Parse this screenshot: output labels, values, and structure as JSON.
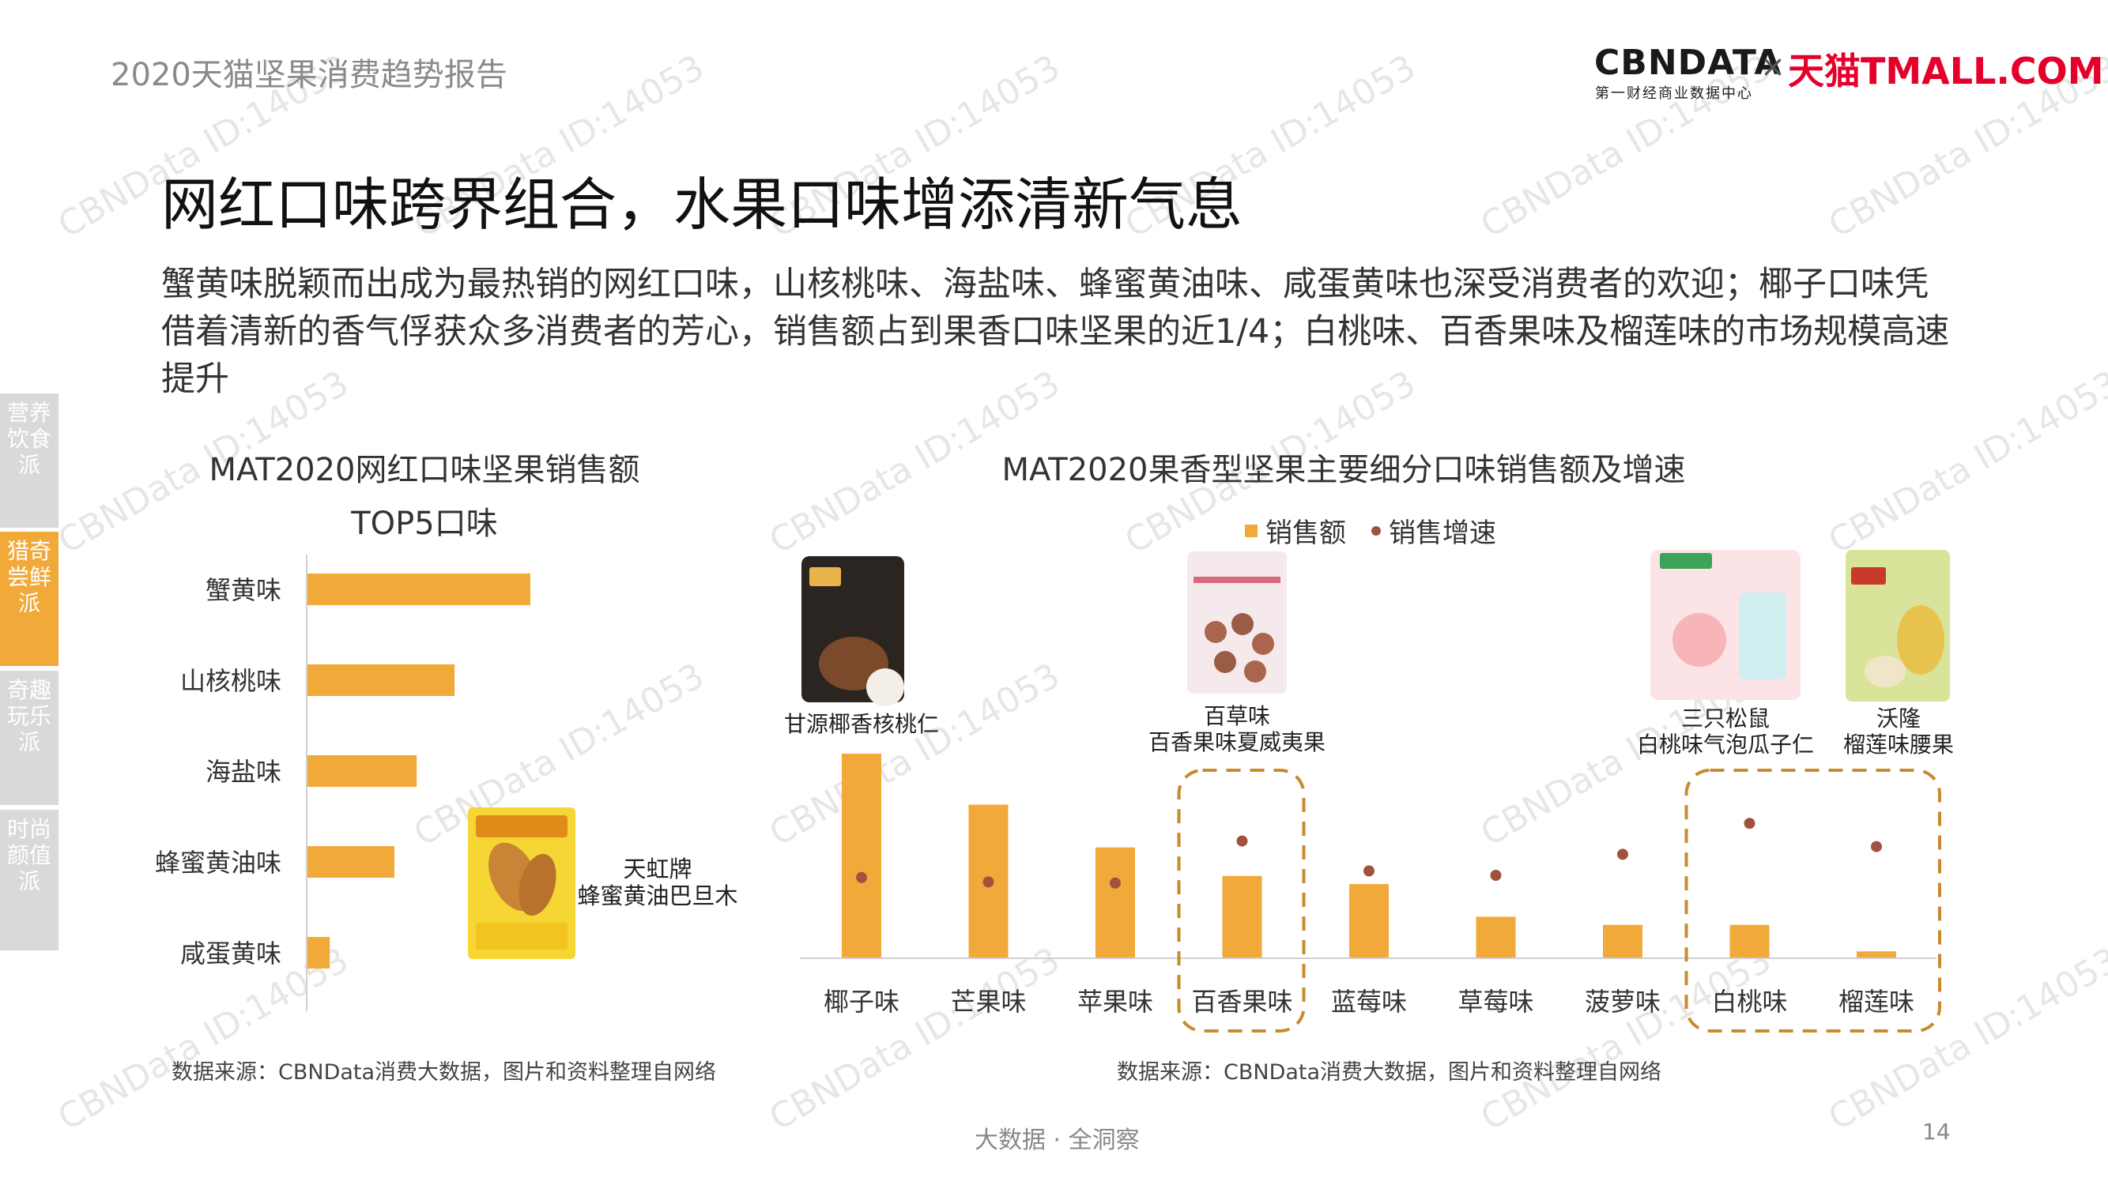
{
  "header": {
    "report_title": "2020天猫坚果消费趋势报告",
    "logo_cbn": "CBNDATA",
    "logo_cbn_sub": "第一财经商业数据中心",
    "logo_x": "×",
    "logo_tmall": "天猫TMALL.COM"
  },
  "slide": {
    "title": "网红口味跨界组合，水果口味增添清新气息",
    "description": "蟹黄味脱颖而出成为最热销的网红口味，山核桃味、海盐味、蜂蜜黄油味、咸蛋黄味也深受消费者的欢迎；椰子口味凭借着清新的香气俘获众多消费者的芳心，销售额占到果香口味坚果的近1/4；白桃味、百香果味及榴莲味的市场规模高速提升"
  },
  "side_tabs": [
    {
      "label": "营养饮食派",
      "active": false
    },
    {
      "label": "猎奇尝鲜派",
      "active": true
    },
    {
      "label": "奇趣玩乐派",
      "active": false
    },
    {
      "label": "时尚颜值派",
      "active": false
    }
  ],
  "colors": {
    "bar": "#f1a93a",
    "dot": "#a0523f",
    "highlight": "#c98a2e",
    "active_tab": "#f1a93a"
  },
  "left_chart": {
    "title_line1": "MAT2020网红口味坚果销售额",
    "title_line2": "TOP5口味",
    "product_label_line1": "天虹牌",
    "product_label_line2": "蜂蜜黄油巴旦木",
    "source": "数据来源：CBNData消费大数据，图片和资料整理自网络"
  },
  "right_chart": {
    "title": "MAT2020果香型坚果主要细分口味销售额及增速",
    "legend_sales": "销售额",
    "legend_growth": "销售增速",
    "source": "数据来源：CBNData消费大数据，图片和资料整理自网络",
    "product_labels": [
      {
        "lines": [
          "甘源椰香核桃仁"
        ]
      },
      {
        "lines": [
          "百草味",
          "百香果味夏威夷果"
        ]
      },
      {
        "lines": [
          "三只松鼠",
          "白桃味气泡瓜子仁"
        ]
      },
      {
        "lines": [
          "沃隆",
          "榴莲味腰果"
        ]
      }
    ]
  },
  "chart_data": [
    {
      "type": "bar",
      "orientation": "horizontal",
      "title": "MAT2020网红口味坚果销售额 TOP5口味",
      "categories": [
        "蟹黄味",
        "山核桃味",
        "海盐味",
        "蜂蜜黄油味",
        "咸蛋黄味"
      ],
      "values": [
        100,
        66,
        49,
        39,
        10
      ],
      "xlim": [
        0,
        100
      ],
      "grid": false
    },
    {
      "type": "bar",
      "title": "MAT2020果香型坚果主要细分口味销售额及增速",
      "categories": [
        "椰子味",
        "芒果味",
        "苹果味",
        "百香果味",
        "蓝莓味",
        "草莓味",
        "菠萝味",
        "白桃味",
        "榴莲味"
      ],
      "series": [
        {
          "name": "销售额",
          "type": "bar",
          "values": [
            100,
            75,
            54,
            40,
            36,
            20,
            16,
            16,
            3
          ]
        },
        {
          "name": "销售增速",
          "type": "scatter",
          "values": [
            28,
            24,
            23,
            61,
            34,
            30,
            49,
            77,
            56
          ]
        }
      ],
      "ylim": [
        0,
        100
      ],
      "highlighted": [
        "百香果味",
        "白桃味",
        "榴莲味"
      ],
      "legend": "top-center",
      "grid": false
    }
  ],
  "footer": {
    "center": "大数据 · 全洞察",
    "page": "14"
  },
  "watermark": "CBNData ID:14053"
}
